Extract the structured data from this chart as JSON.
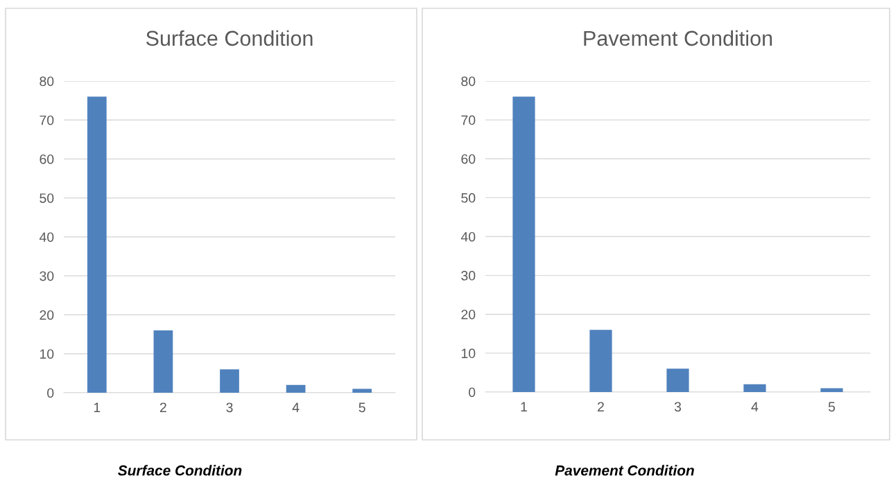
{
  "chart_data": [
    {
      "type": "bar",
      "title": "Surface Condition",
      "categories": [
        "1",
        "2",
        "3",
        "4",
        "5"
      ],
      "values": [
        76,
        16,
        6,
        2,
        1
      ],
      "color": "#4f81bd",
      "ylim": [
        0,
        80
      ],
      "yticks": [
        0,
        10,
        20,
        30,
        40,
        50,
        60,
        70,
        80
      ],
      "grid": "y",
      "annotations": [
        "Surface Condition"
      ]
    },
    {
      "type": "bar",
      "title": "Pavement Condition",
      "categories": [
        "1",
        "2",
        "3",
        "4",
        "5"
      ],
      "values": [
        76,
        16,
        6,
        2,
        1
      ],
      "color": "#4f81bd",
      "ylim": [
        0,
        80
      ],
      "yticks": [
        0,
        10,
        20,
        30,
        40,
        50,
        60,
        70,
        80
      ],
      "grid": "y",
      "annotations": [
        "Pavement Condition"
      ]
    }
  ]
}
